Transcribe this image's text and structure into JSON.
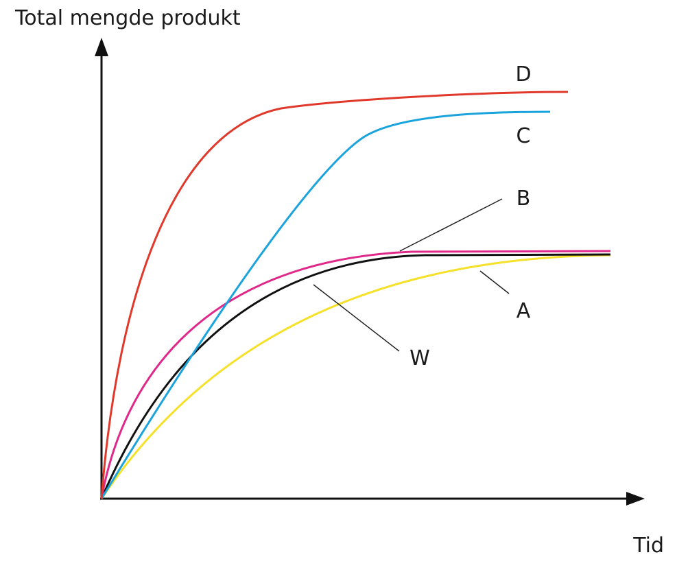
{
  "y_axis_label": "Total mengde produkt",
  "x_axis_label": "Tid",
  "curves": [
    {
      "label": "D",
      "color": "#e0392b"
    },
    {
      "label": "C",
      "color": "#1aa3dd"
    },
    {
      "label": "B",
      "color": "#e0288a"
    },
    {
      "label": "A",
      "color": "#f5e12a"
    },
    {
      "label": "W",
      "color": "#111111"
    }
  ]
}
